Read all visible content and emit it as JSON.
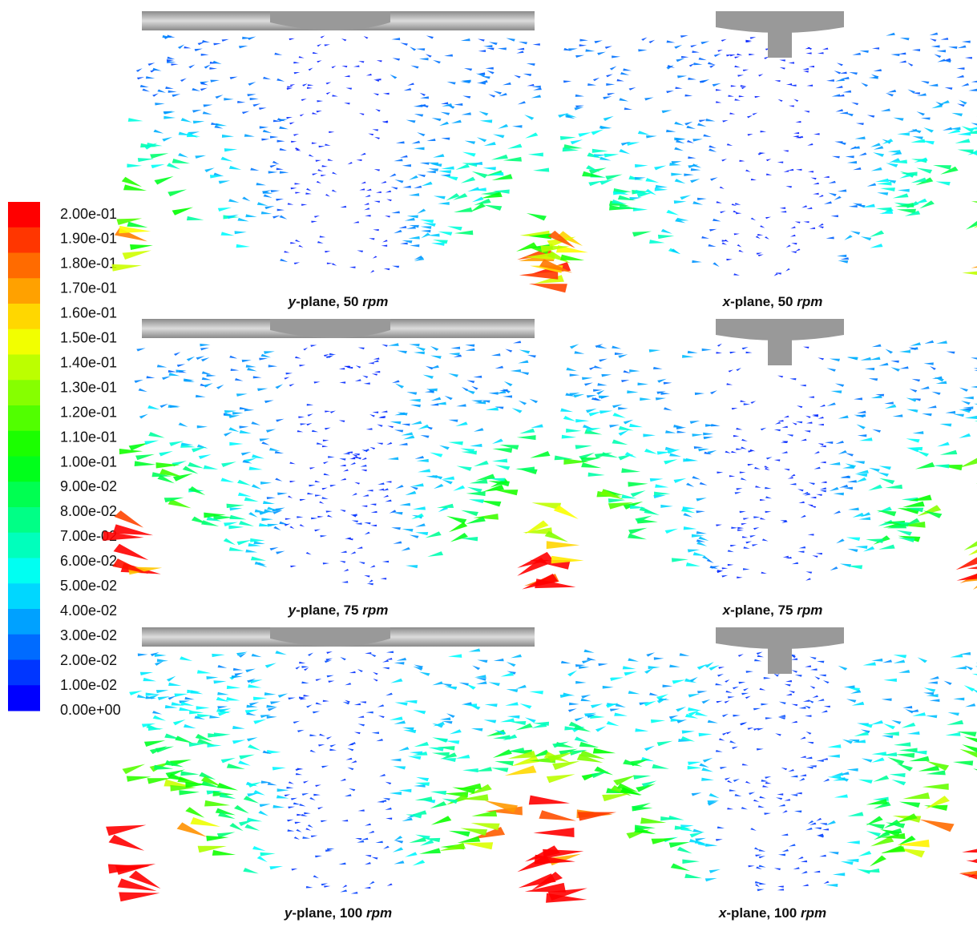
{
  "colorbar": {
    "labels": [
      "2.00e-01",
      "1.90e-01",
      "1.80e-01",
      "1.70e-01",
      "1.60e-01",
      "1.50e-01",
      "1.40e-01",
      "1.30e-01",
      "1.20e-01",
      "1.10e-01",
      "1.00e-01",
      "9.00e-02",
      "8.00e-02",
      "7.00e-02",
      "6.00e-02",
      "5.00e-02",
      "4.00e-02",
      "3.00e-02",
      "2.00e-02",
      "1.00e-02",
      "0.00e+00"
    ]
  },
  "panels": [
    {
      "caption": [
        "y",
        "-plane, 50 ",
        "rpm"
      ]
    },
    {
      "caption": [
        "x",
        "-plane, 50 ",
        "rpm"
      ]
    },
    {
      "caption": [
        "y",
        "-plane, 75 ",
        "rpm"
      ]
    },
    {
      "caption": [
        "x",
        "-plane, 75 ",
        "rpm"
      ]
    },
    {
      "caption": [
        "y",
        "-plane, 100 ",
        "rpm"
      ]
    },
    {
      "caption": [
        "x",
        "-plane, 100 ",
        "rpm"
      ]
    }
  ]
}
